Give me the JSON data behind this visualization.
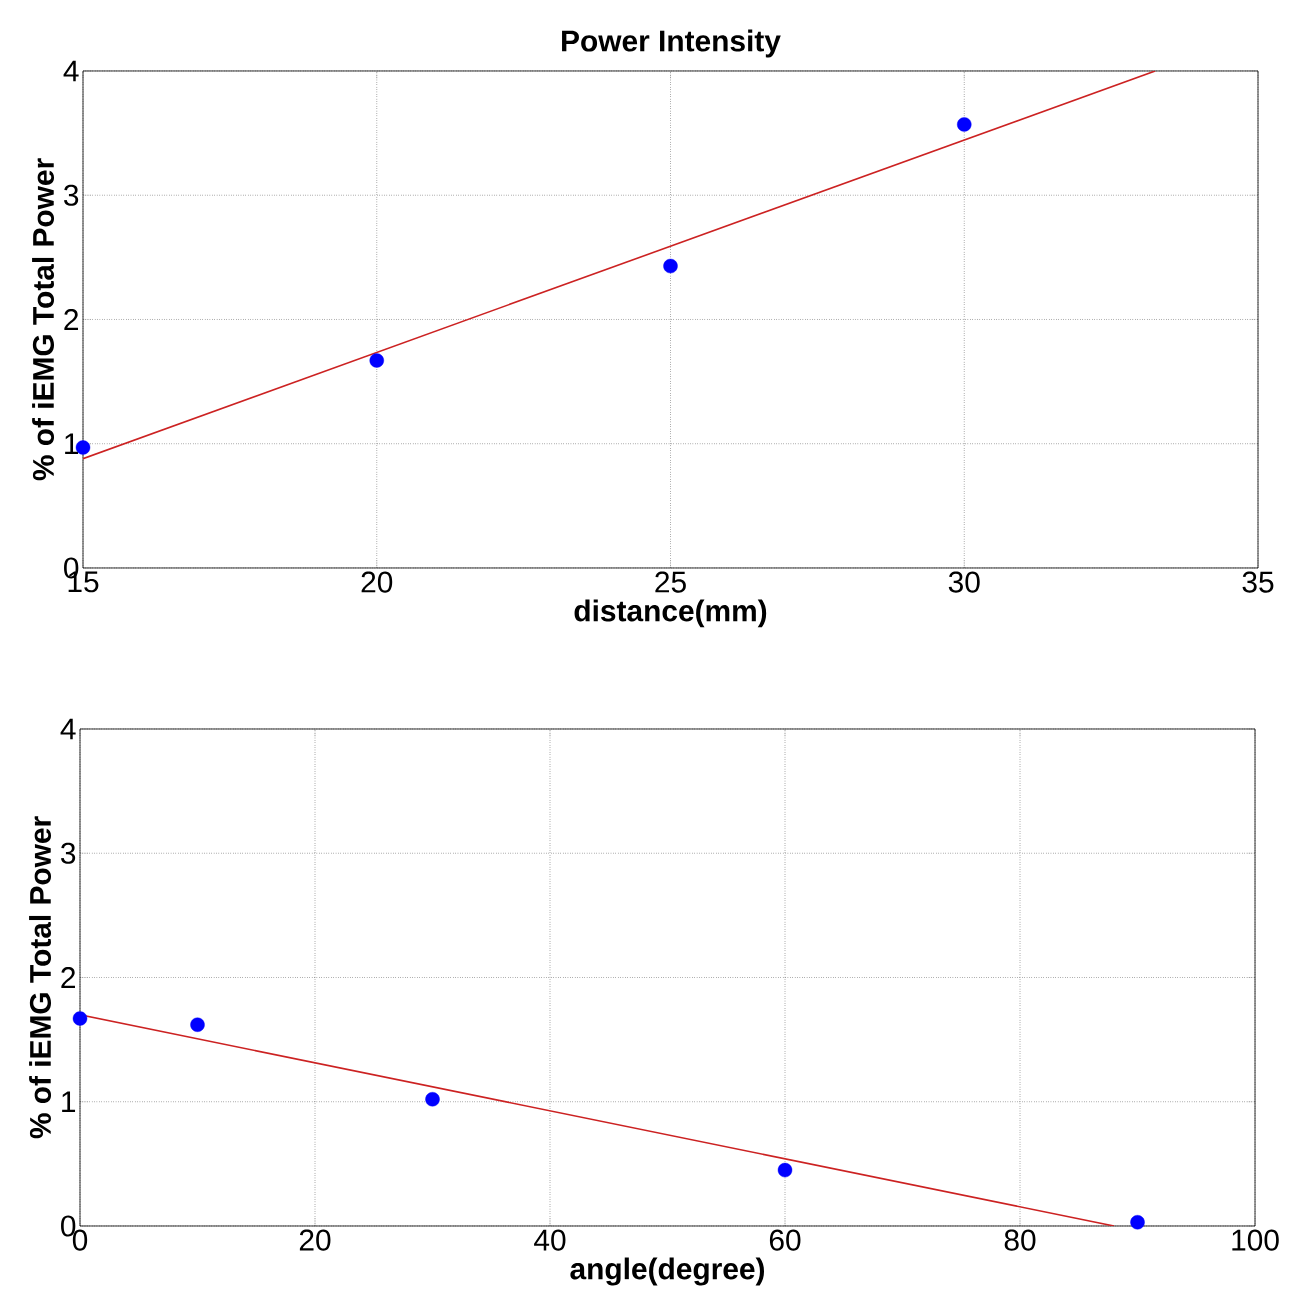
{
  "chart_data": [
    {
      "type": "scatter",
      "title": "Power Intensity",
      "xlabel": "distance(mm)",
      "ylabel": "% of iEMG Total Power",
      "xlim": [
        15,
        35
      ],
      "ylim": [
        0,
        4
      ],
      "xticks": [
        15,
        20,
        25,
        30,
        35
      ],
      "yticks": [
        0,
        1,
        2,
        3,
        4
      ],
      "grid": true,
      "series": [
        {
          "color": "#0000ff",
          "marker": "circle",
          "x": [
            15,
            20,
            25,
            30
          ],
          "values": [
            0.97,
            1.67,
            2.43,
            3.57
          ]
        },
        {
          "type": "line",
          "color": "#cc2222",
          "marker": "none",
          "line_style": "solid",
          "x": [
            15,
            33.25
          ],
          "values": [
            0.88,
            4
          ]
        }
      ]
    },
    {
      "type": "scatter",
      "xlabel": "angle(degree)",
      "ylabel": "% of iEMG Total Power",
      "xlim": [
        0,
        100
      ],
      "ylim": [
        0,
        4
      ],
      "xticks": [
        0,
        20,
        40,
        60,
        80,
        100
      ],
      "yticks": [
        0,
        1,
        2,
        3,
        4
      ],
      "grid": true,
      "series": [
        {
          "color": "#0000ff",
          "marker": "circle",
          "x": [
            0,
            10,
            30,
            60,
            90
          ],
          "values": [
            1.67,
            1.62,
            1.02,
            0.45,
            0.03
          ]
        },
        {
          "type": "line",
          "color": "#cc2222",
          "marker": "none",
          "line_style": "solid",
          "x": [
            0,
            88
          ],
          "values": [
            1.7,
            0
          ]
        }
      ]
    }
  ]
}
